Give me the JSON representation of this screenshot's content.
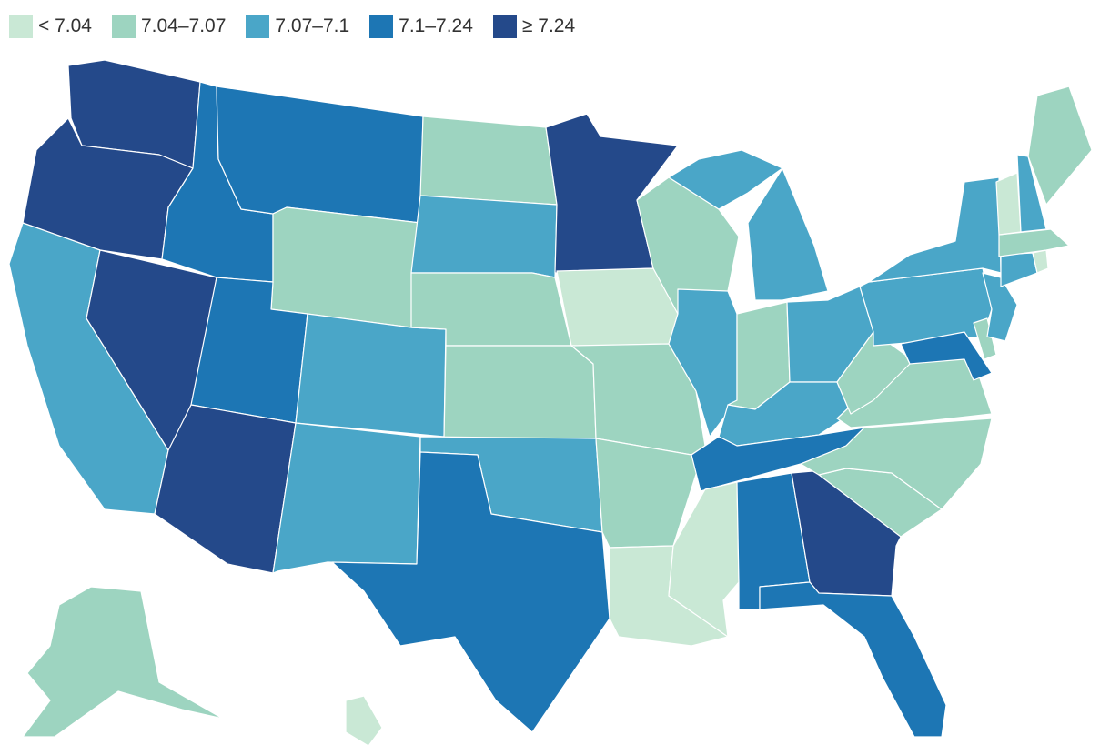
{
  "legend": [
    {
      "label": "< 7.04",
      "color": "#c9e8d5"
    },
    {
      "label": "7.04–7.07",
      "color": "#9dd4c0"
    },
    {
      "label": "7.07–7.1",
      "color": "#4aa6c8"
    },
    {
      "label": "7.1–7.24",
      "color": "#1d76b4"
    },
    {
      "label": "≥ 7.24",
      "color": "#24498a"
    }
  ],
  "chart_data": {
    "type": "choropleth",
    "region": "United States",
    "bins": [
      "< 7.04",
      "7.04–7.07",
      "7.07–7.1",
      "7.1–7.24",
      "≥ 7.24"
    ],
    "states": {
      "WA": 4,
      "OR": 4,
      "NV": 4,
      "AZ": 4,
      "MN": 4,
      "GA": 4,
      "ID": 3,
      "MT": 3,
      "UT": 3,
      "TX": 3,
      "AL": 3,
      "FL": 3,
      "TN": 3,
      "MD": 3,
      "CA": 2,
      "CO": 2,
      "NM": 2,
      "SD": 2,
      "OK": 2,
      "IL": 2,
      "MI": 2,
      "OH": 2,
      "KY": 2,
      "PA": 2,
      "NY": 2,
      "NJ": 2,
      "CT": 2,
      "NH": 2,
      "WY": 1,
      "ND": 1,
      "NE": 1,
      "KS": 1,
      "MO": 1,
      "AR": 1,
      "WI": 1,
      "IN": 1,
      "WV": 1,
      "VA": 1,
      "NC": 1,
      "SC": 1,
      "ME": 1,
      "MA": 1,
      "DE": 1,
      "AK": 1,
      "IA": 0,
      "LA": 0,
      "MS": 0,
      "VT": 0,
      "RI": 0,
      "HI": 0
    }
  }
}
